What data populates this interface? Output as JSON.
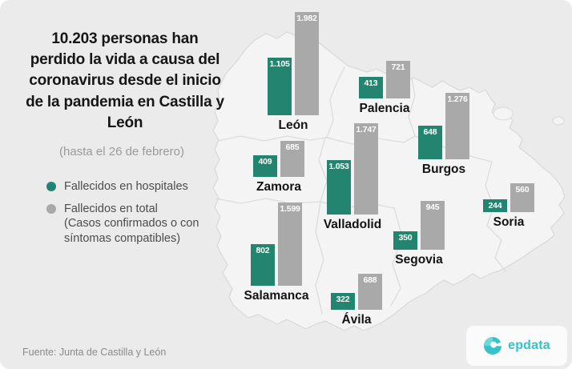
{
  "title": "10.203 personas han perdido la vida a causa del coronavirus desde el inicio de la pandemia en Castilla y León",
  "subtitle": "(hasta el 26 de febrero)",
  "legend": {
    "items": [
      {
        "label": "Fallecidos en hospitales"
      },
      {
        "label": "Fallecidos en total",
        "sublabel": "(Casos confirmados o con síntomas compatibles)"
      }
    ]
  },
  "colors": {
    "hospital": "#23856f",
    "total": "#a9a9a9",
    "brand": "#35c2c9"
  },
  "provinces": [
    {
      "name": "León",
      "hospital": "1.105",
      "total": "1.982"
    },
    {
      "name": "Palencia",
      "hospital": "413",
      "total": "721"
    },
    {
      "name": "Burgos",
      "hospital": "648",
      "total": "1.276"
    },
    {
      "name": "Zamora",
      "hospital": "409",
      "total": "685"
    },
    {
      "name": "Valladolid",
      "hospital": "1.053",
      "total": "1.747"
    },
    {
      "name": "Soria",
      "hospital": "244",
      "total": "560"
    },
    {
      "name": "Segovia",
      "hospital": "350",
      "total": "945"
    },
    {
      "name": "Salamanca",
      "hospital": "802",
      "total": "1.599"
    },
    {
      "name": "Ávila",
      "hospital": "322",
      "total": "688"
    }
  ],
  "source": "Fuente: Junta de Castilla y León",
  "brand": "epdata",
  "chart_data": {
    "type": "bar",
    "title": "10.203 personas han perdido la vida a causa del coronavirus desde el inicio de la pandemia en Castilla y León (hasta el 26 de febrero)",
    "categories": [
      "León",
      "Palencia",
      "Burgos",
      "Zamora",
      "Valladolid",
      "Soria",
      "Segovia",
      "Salamanca",
      "Ávila"
    ],
    "series": [
      {
        "name": "Fallecidos en hospitales",
        "values": [
          1105,
          413,
          648,
          409,
          1053,
          244,
          350,
          802,
          322
        ]
      },
      {
        "name": "Fallecidos en total (Casos confirmados o con síntomas compatibles)",
        "values": [
          1982,
          721,
          1276,
          685,
          1747,
          560,
          945,
          1599,
          688
        ]
      }
    ],
    "layout": "grouped bars placed over provinces of a Castilla y León map",
    "legend_position": "left",
    "grid": false,
    "source": "Fuente: Junta de Castilla y León"
  }
}
